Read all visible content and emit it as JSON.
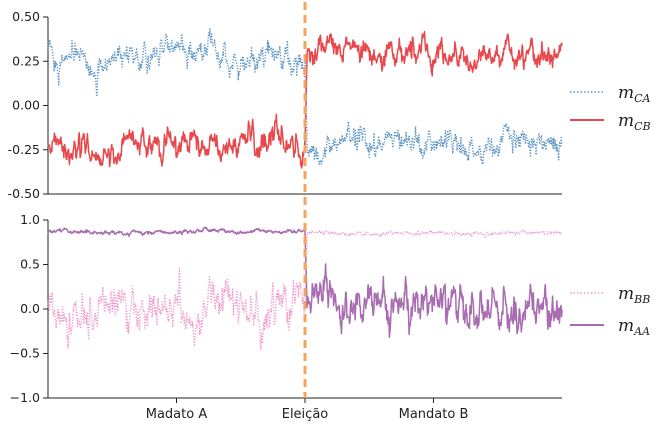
{
  "colors": {
    "m_CA": "#5a93c4",
    "m_CB": "#e8474b",
    "m_BB": "#f09ac9",
    "m_AA": "#a86cb1",
    "election_line": "#f6a35c",
    "axis": "#222222"
  },
  "chart_data": [
    {
      "type": "line",
      "x_range": [
        0,
        1000
      ],
      "ylim": [
        -0.5,
        0.5
      ],
      "yticks": [
        "0.50",
        "0.25",
        "0.00",
        "-0.25",
        "-0.50"
      ],
      "ytick_values": [
        0.5,
        0.25,
        0.0,
        -0.25,
        -0.5
      ],
      "event": {
        "label": "Eleição",
        "x": 500
      },
      "series": [
        {
          "name": "m_CA",
          "legend_base": "m",
          "legend_sub": "CA",
          "style": "dotted",
          "segments": [
            {
              "x": [
                0,
                500
              ],
              "mean": 0.28,
              "amplitude": 0.05
            },
            {
              "x": [
                500,
                1000
              ],
              "mean": -0.22,
              "amplitude": 0.05
            }
          ]
        },
        {
          "name": "m_CB",
          "legend_base": "m",
          "legend_sub": "CB",
          "style": "solid",
          "segments": [
            {
              "x": [
                0,
                500
              ],
              "mean": -0.22,
              "amplitude": 0.05
            },
            {
              "x": [
                500,
                1000
              ],
              "mean": 0.3,
              "amplitude": 0.05
            }
          ]
        }
      ]
    },
    {
      "type": "line",
      "x_range": [
        0,
        1000
      ],
      "ylim": [
        -1.0,
        1.0
      ],
      "yticks": [
        "1.0",
        "0.5",
        "0.0",
        "−0.5",
        "−1.0"
      ],
      "ytick_values": [
        1.0,
        0.5,
        0.0,
        -0.5,
        -1.0
      ],
      "xticks": [
        {
          "label": "Madato A",
          "x": 250
        },
        {
          "label": "Eleição",
          "x": 500
        },
        {
          "label": "Mandato B",
          "x": 750
        }
      ],
      "event": {
        "label": "Eleição",
        "x": 500
      },
      "series": [
        {
          "name": "m_BB",
          "legend_base": "m",
          "legend_sub": "BB",
          "style": "dotted",
          "segments": [
            {
              "x": [
                0,
                500
              ],
              "mean": 0.0,
              "amplitude": 0.15
            },
            {
              "x": [
                500,
                1000
              ],
              "mean": 0.85,
              "amplitude": 0.015
            }
          ]
        },
        {
          "name": "m_AA",
          "legend_base": "m",
          "legend_sub": "AA",
          "style": "solid",
          "segments": [
            {
              "x": [
                0,
                500
              ],
              "mean": 0.86,
              "amplitude": 0.015
            },
            {
              "x": [
                500,
                1000
              ],
              "mean": 0.02,
              "amplitude": 0.15
            }
          ]
        }
      ]
    }
  ]
}
